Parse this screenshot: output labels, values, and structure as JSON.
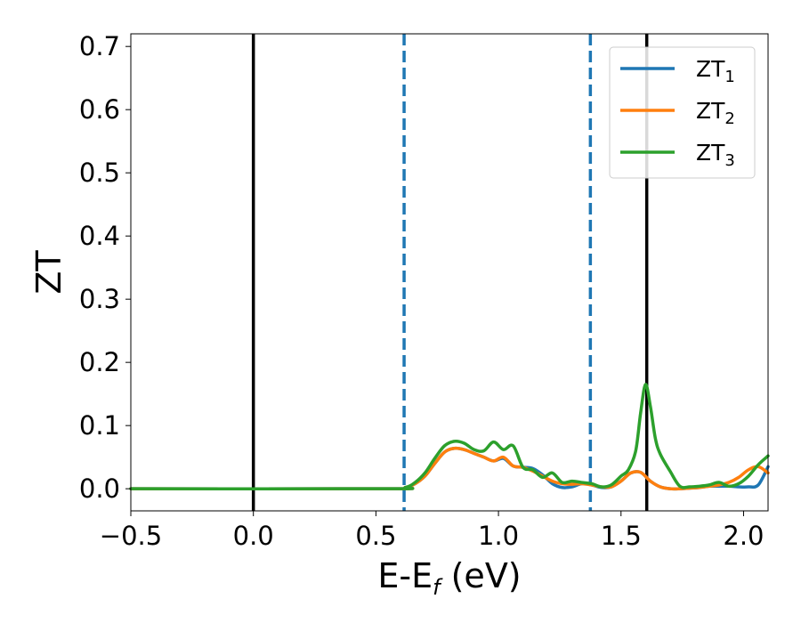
{
  "chart_data": {
    "type": "line",
    "xlabel": "E-E",
    "xlabel_sub": "f",
    "xlabel_unit": " (eV)",
    "ylabel": "ZT",
    "xlim": [
      -0.5,
      2.1
    ],
    "ylim": [
      -0.035,
      0.72
    ],
    "xticks": [
      -0.5,
      0.0,
      0.5,
      1.0,
      1.5,
      2.0
    ],
    "xtick_labels": [
      "−0.5",
      "0.0",
      "0.5",
      "1.0",
      "1.5",
      "2.0"
    ],
    "yticks": [
      0.0,
      0.1,
      0.2,
      0.3,
      0.4,
      0.5,
      0.6,
      0.7
    ],
    "ytick_labels": [
      "0.0",
      "0.1",
      "0.2",
      "0.3",
      "0.4",
      "0.5",
      "0.6",
      "0.7"
    ],
    "grid": false,
    "legend_position": "top-right",
    "vertical_lines": [
      {
        "x": 0.0,
        "style": "solid",
        "color": "#000000"
      },
      {
        "x": 1.605,
        "style": "solid",
        "color": "#000000"
      },
      {
        "x": 0.615,
        "style": "dashed",
        "color": "#1f77b4"
      },
      {
        "x": 1.375,
        "style": "dashed",
        "color": "#1f77b4"
      }
    ],
    "series": [
      {
        "name": "ZT",
        "sub": "1",
        "color": "#1f77b4",
        "x": [
          -0.5,
          0.55,
          0.62,
          0.66,
          0.7,
          0.74,
          0.78,
          0.82,
          0.86,
          0.9,
          0.94,
          0.98,
          1.02,
          1.06,
          1.1,
          1.14,
          1.18,
          1.22,
          1.26,
          1.3,
          1.34,
          1.38,
          1.42,
          1.46,
          1.5,
          1.54,
          1.58,
          1.62,
          1.66,
          1.7,
          1.74,
          1.78,
          1.82,
          1.86,
          1.9,
          1.94,
          1.98,
          2.02,
          2.06,
          2.1
        ],
        "y": [
          0.0,
          0.0,
          0.002,
          0.008,
          0.02,
          0.04,
          0.058,
          0.064,
          0.062,
          0.056,
          0.05,
          0.044,
          0.048,
          0.036,
          0.034,
          0.032,
          0.022,
          0.008,
          0.002,
          0.003,
          0.008,
          0.006,
          0.002,
          0.003,
          0.012,
          0.025,
          0.026,
          0.012,
          0.003,
          0.0,
          0.0,
          0.001,
          0.002,
          0.004,
          0.004,
          0.004,
          0.003,
          0.003,
          0.006,
          0.035
        ]
      },
      {
        "name": "ZT",
        "sub": "2",
        "color": "#ff7f0e",
        "x": [
          -0.5,
          0.55,
          0.62,
          0.66,
          0.7,
          0.74,
          0.78,
          0.82,
          0.86,
          0.9,
          0.94,
          0.98,
          1.02,
          1.06,
          1.1,
          1.14,
          1.18,
          1.22,
          1.26,
          1.3,
          1.34,
          1.38,
          1.42,
          1.46,
          1.5,
          1.54,
          1.58,
          1.62,
          1.66,
          1.7,
          1.74,
          1.78,
          1.82,
          1.86,
          1.9,
          1.94,
          1.98,
          2.02,
          2.06,
          2.1
        ],
        "y": [
          0.0,
          0.0,
          0.002,
          0.008,
          0.02,
          0.04,
          0.058,
          0.064,
          0.062,
          0.056,
          0.05,
          0.044,
          0.05,
          0.036,
          0.034,
          0.028,
          0.02,
          0.012,
          0.008,
          0.007,
          0.008,
          0.006,
          0.003,
          0.003,
          0.012,
          0.025,
          0.026,
          0.012,
          0.003,
          0.0,
          0.0,
          0.001,
          0.002,
          0.004,
          0.006,
          0.01,
          0.018,
          0.03,
          0.035,
          0.025
        ]
      },
      {
        "name": "ZT",
        "sub": "3",
        "color": "#2ca02c",
        "x": [
          -0.5,
          0.55,
          0.62,
          0.66,
          0.7,
          0.74,
          0.78,
          0.82,
          0.86,
          0.9,
          0.94,
          0.98,
          1.02,
          1.06,
          1.1,
          1.14,
          1.18,
          1.22,
          1.26,
          1.3,
          1.34,
          1.38,
          1.42,
          1.46,
          1.5,
          1.53,
          1.56,
          1.58,
          1.6,
          1.62,
          1.64,
          1.66,
          1.7,
          1.74,
          1.78,
          1.82,
          1.86,
          1.9,
          1.94,
          1.98,
          2.02,
          2.06,
          2.1
        ],
        "y": [
          0.0,
          0.0,
          0.002,
          0.01,
          0.025,
          0.048,
          0.068,
          0.075,
          0.072,
          0.062,
          0.06,
          0.074,
          0.062,
          0.068,
          0.034,
          0.03,
          0.018,
          0.025,
          0.01,
          0.012,
          0.01,
          0.008,
          0.003,
          0.006,
          0.02,
          0.03,
          0.06,
          0.12,
          0.165,
          0.13,
          0.08,
          0.055,
          0.028,
          0.004,
          0.003,
          0.004,
          0.006,
          0.01,
          0.004,
          0.008,
          0.02,
          0.038,
          0.052
        ]
      }
    ]
  }
}
